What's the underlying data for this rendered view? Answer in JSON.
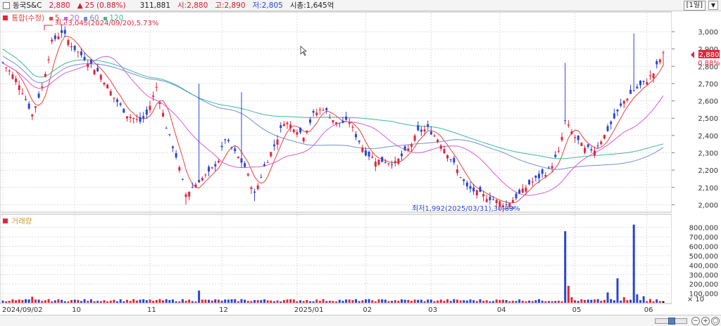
{
  "header": {
    "name": "동국S&C",
    "price": "2,880",
    "change_arrow": "▲",
    "change": "25",
    "change_pct": "(0.88%)",
    "volume": "311,881",
    "open": "시:2,880",
    "high": "고:2,890",
    "low": "저:2,805",
    "market_cap": "시총:1,645억",
    "period": "[1일]"
  },
  "legend": {
    "price_title": "통합(수정)",
    "ma5": "5",
    "ma20": "20",
    "ma60": "60",
    "ma120": "120",
    "volume_title": "거래량"
  },
  "annotations": {
    "high": "최고3,045(2024/09/20),5.73%",
    "low": "최저1,992(2025/03/31),30.83%"
  },
  "axis": {
    "price_ticks": [
      "3,000",
      "2,900",
      "2,800",
      "2,700",
      "2,600",
      "2,500",
      "2,400",
      "2,300",
      "2,200",
      "2,100",
      "2,000"
    ],
    "volume_ticks": [
      "800,000",
      "700,000",
      "600,000",
      "500,000",
      "400,000",
      "300,000",
      "200,000",
      "100,000"
    ],
    "volume_unit": "× 10",
    "current_price_tag": "2,880",
    "current_pct_tag": "0.88%",
    "dates": [
      "2024/09/02",
      "10",
      "11",
      "12",
      "2025/01",
      "02",
      "03",
      "04",
      "05",
      "06"
    ]
  },
  "colors": {
    "up": "#e0263c",
    "down": "#2a45d6",
    "ma5": "#e8423f",
    "ma20": "#d85ad8",
    "ma60": "#6f8fd4",
    "ma120": "#3fb89a"
  },
  "chart_data": {
    "type": "candlestick",
    "price_range": [
      1965,
      3110
    ],
    "volume_range": [
      0,
      880000
    ],
    "candles": [],
    "volumes": []
  }
}
